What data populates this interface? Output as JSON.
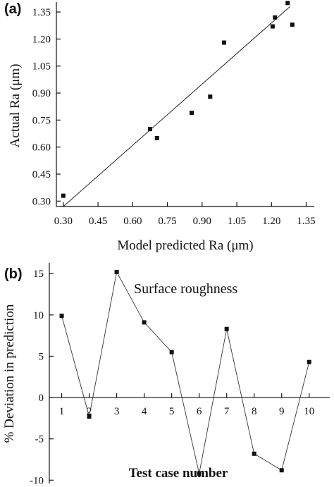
{
  "chart_data": [
    {
      "panel": "(a)",
      "type": "scatter",
      "xlabel": "Model predicted Ra (μm)",
      "ylabel": "Actual Ra (μm)",
      "xlim": [
        0.27,
        1.385
      ],
      "ylim": [
        0.27,
        1.405
      ],
      "xticks": [
        "0.30",
        "0.45",
        "0.60",
        "0.75",
        "0.90",
        "1.05",
        "1.20",
        "1.35"
      ],
      "yticks": [
        "0.30",
        "0.45",
        "0.60",
        "0.75",
        "0.90",
        "1.05",
        "1.20",
        "1.35"
      ],
      "xtick_values": [
        0.3,
        0.45,
        0.6,
        0.75,
        0.9,
        1.05,
        1.2,
        1.35
      ],
      "ytick_values": [
        0.3,
        0.45,
        0.6,
        0.75,
        0.9,
        1.05,
        1.2,
        1.35
      ],
      "points": [
        {
          "x": 0.3,
          "y": 0.33
        },
        {
          "x": 0.675,
          "y": 0.7
        },
        {
          "x": 0.705,
          "y": 0.65
        },
        {
          "x": 0.855,
          "y": 0.79
        },
        {
          "x": 0.935,
          "y": 0.88
        },
        {
          "x": 0.995,
          "y": 1.18
        },
        {
          "x": 1.205,
          "y": 1.27
        },
        {
          "x": 1.215,
          "y": 1.32
        },
        {
          "x": 1.27,
          "y": 1.4
        },
        {
          "x": 1.29,
          "y": 1.28
        }
      ],
      "fit_line": {
        "x": [
          0.3,
          1.28
        ],
        "y": [
          0.27,
          1.38
        ]
      },
      "grid": false
    },
    {
      "panel": "(b)",
      "type": "line",
      "xlabel": "Test case number",
      "ylabel": "% Deviation in prediction",
      "annotation": "Surface roughness",
      "xlim": [
        0.55,
        10.75
      ],
      "ylim": [
        -10.4,
        16.3
      ],
      "x": [
        1,
        2,
        3,
        4,
        5,
        6,
        7,
        8,
        9,
        10
      ],
      "xticks": [
        "1",
        "2",
        "3",
        "4",
        "5",
        "6",
        "7",
        "8",
        "9",
        "10"
      ],
      "yticks": [
        "15",
        "10",
        "5",
        "0",
        "-5",
        "-10"
      ],
      "ytick_values": [
        15,
        10,
        5,
        0,
        -5,
        -10
      ],
      "series": [
        {
          "values": [
            9.9,
            -2.3,
            15.2,
            9.1,
            5.5,
            -9.2,
            8.3,
            -6.8,
            -8.8,
            4.3
          ]
        }
      ],
      "grid": false
    }
  ]
}
